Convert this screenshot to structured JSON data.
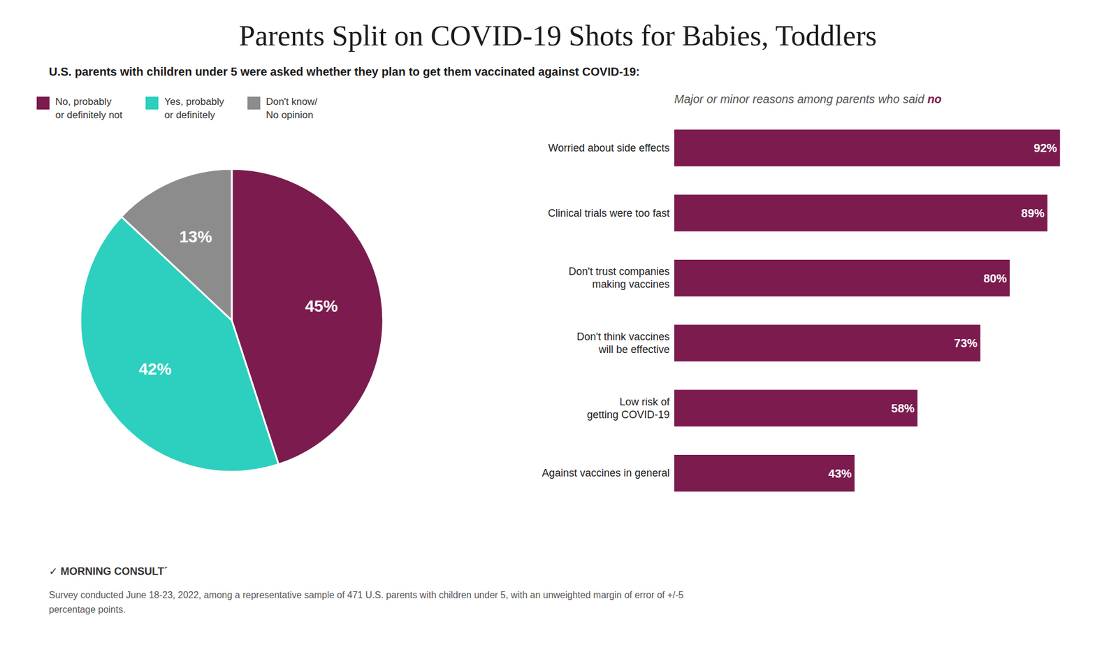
{
  "chart_data": [
    {
      "type": "pie",
      "title": "Parents Split on COVID-19 Shots for Babies, Toddlers",
      "subtitle": "U.S. parents with children under 5 were asked whether they plan to get them vaccinated against COVID-19:",
      "categories": [
        "No, probably\nor definitely not",
        "Yes, probably\nor definitely",
        "Don't know/\nNo opinion"
      ],
      "values": [
        45,
        42,
        13
      ],
      "value_labels": [
        "45%",
        "42%",
        "13%"
      ],
      "colors": [
        "#7B1B4E",
        "#2DCFBE",
        "#8C8C8C"
      ],
      "data_labels": true,
      "legend": "top",
      "annotations": [
        "✓ MORNING CONSULT´",
        "Survey conducted June 18-23, 2022, among a representative sample of 471 U.S. parents with children under 5, with an unweighted margin of error of +/-5\npercentage points."
      ]
    },
    {
      "type": "bar",
      "title": "Major or minor reasons among parents who said no",
      "orientation": "horizontal",
      "categories": [
        "Worried about side effects",
        "Clinical trials were too fast",
        "Don't trust companies\nmaking vaccines",
        "Don't think vaccines\nwill be effective",
        "Low risk of\ngetting COVID-19",
        "Against vaccines in general"
      ],
      "values": [
        92,
        89,
        80,
        73,
        58,
        43
      ],
      "value_labels": [
        "92%",
        "89%",
        "80%",
        "73%",
        "58%",
        "43%"
      ],
      "color": "#7B1B4E",
      "xlim": [
        0,
        100
      ],
      "data_labels": true,
      "tick_labels": "y"
    }
  ]
}
